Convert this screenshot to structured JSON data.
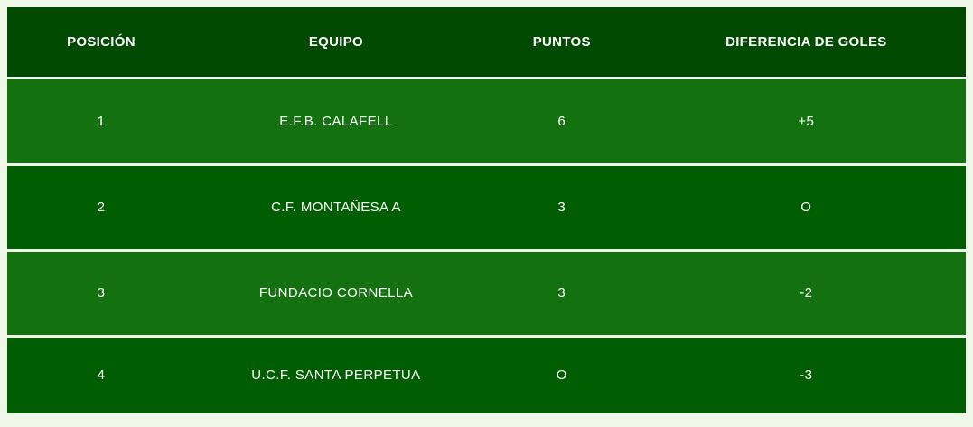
{
  "table": {
    "columns": [
      {
        "key": "posicion",
        "label": "POSICIÓN"
      },
      {
        "key": "equipo",
        "label": "EQUIPO"
      },
      {
        "key": "puntos",
        "label": "PUNTOS"
      },
      {
        "key": "diferencia",
        "label": "DIFERENCIA DE GOLES"
      }
    ],
    "rows": [
      {
        "posicion": "1",
        "equipo": "E.F.B. CALAFELL",
        "puntos": "6",
        "diferencia": "+5"
      },
      {
        "posicion": "2",
        "equipo": "C.F. MONTAÑESA A",
        "puntos": "3",
        "diferencia": "O"
      },
      {
        "posicion": "3",
        "equipo": "FUNDACIO CORNELLA",
        "puntos": "3",
        "diferencia": "-2"
      },
      {
        "posicion": "4",
        "equipo": "U.C.F. SANTA PERPETUA",
        "puntos": "O",
        "diferencia": "-3"
      }
    ]
  },
  "chart_data": {
    "type": "table",
    "title": "",
    "columns": [
      "POSICIÓN",
      "EQUIPO",
      "PUNTOS",
      "DIFERENCIA DE GOLES"
    ],
    "rows": [
      [
        "1",
        "E.F.B. CALAFELL",
        "6",
        "+5"
      ],
      [
        "2",
        "C.F. MONTAÑESA A",
        "3",
        "O"
      ],
      [
        "3",
        "FUNDACIO CORNELLA",
        "3",
        "-2"
      ],
      [
        "4",
        "U.C.F. SANTA PERPETUA",
        "O",
        "-3"
      ]
    ]
  },
  "colors": {
    "page_background": "#eef7e8",
    "header_background": "#014a01",
    "row_odd_background": "#147110",
    "row_even_background": "#015d01",
    "text_color": "#ffffff"
  }
}
